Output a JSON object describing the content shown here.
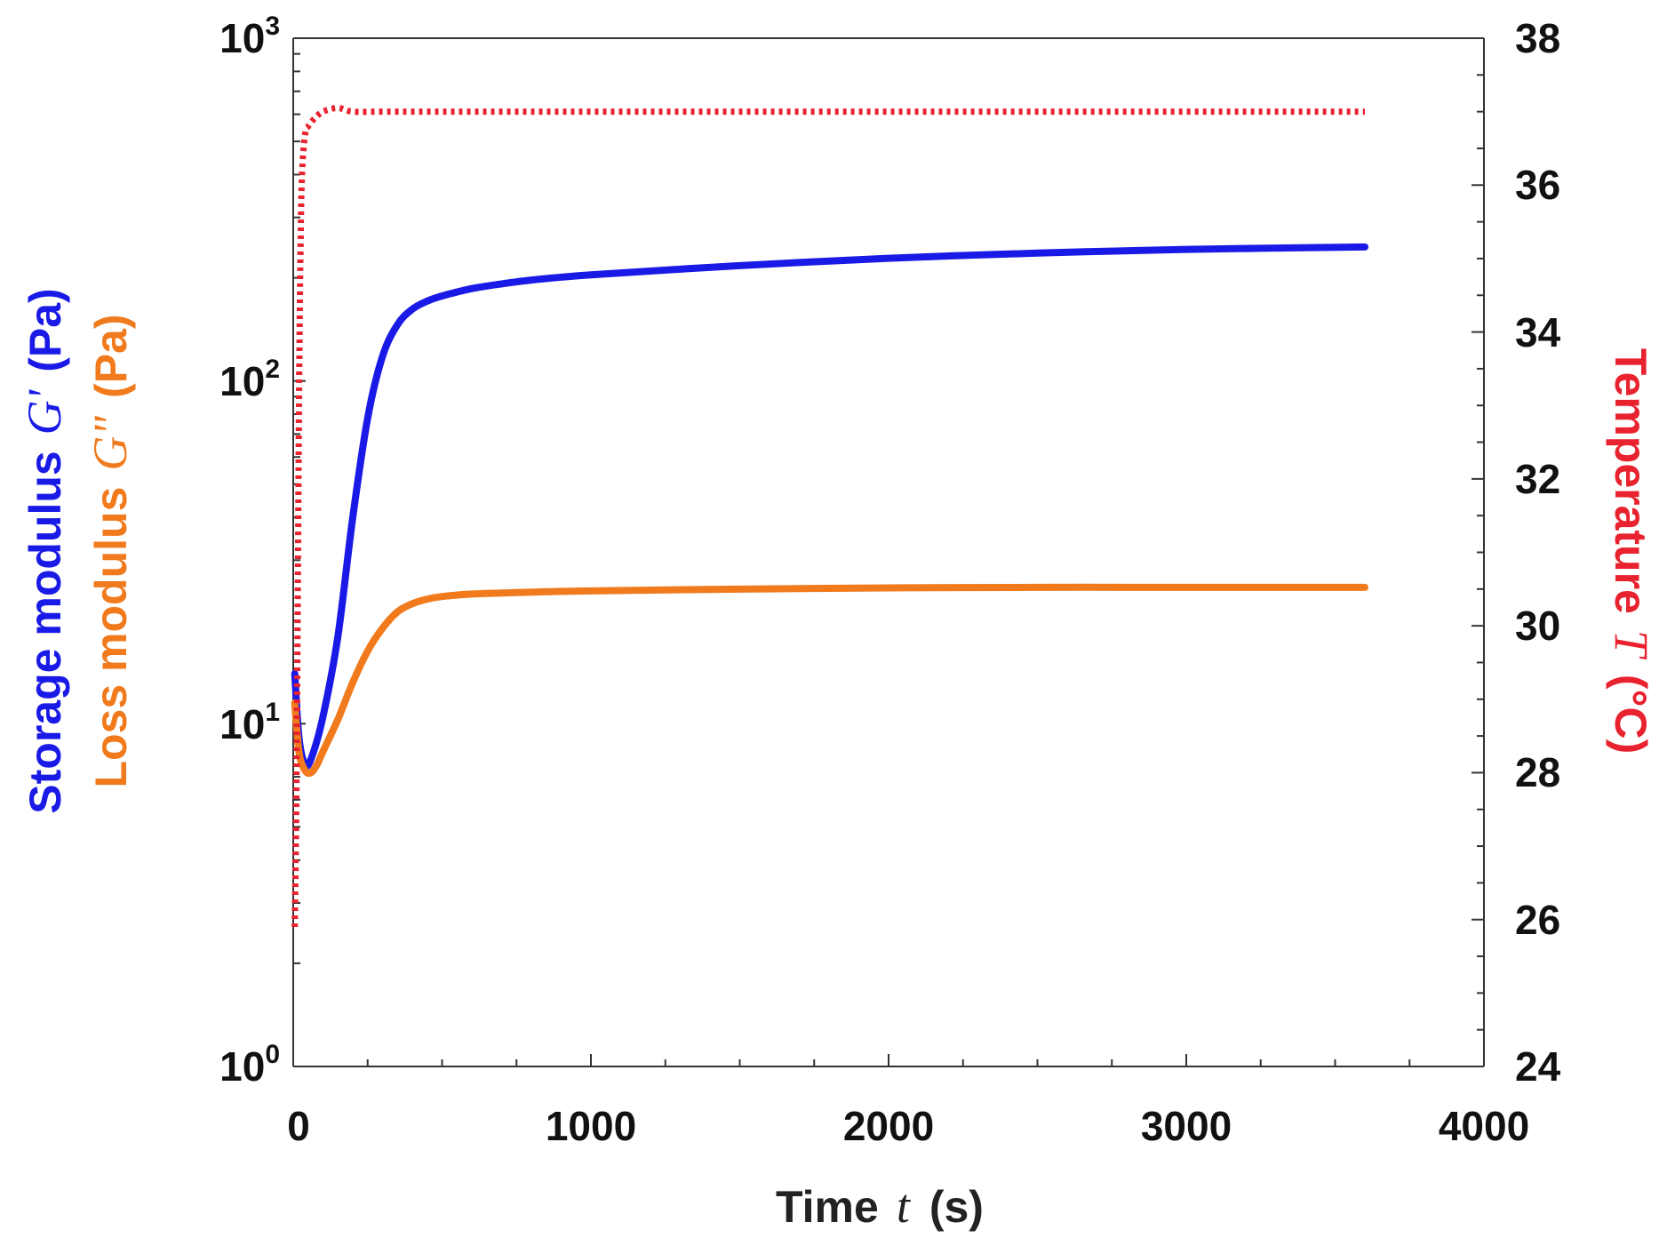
{
  "chart_data": {
    "type": "line",
    "xlabel": {
      "prefix": "Time",
      "symbol": "t",
      "unit": "(s)"
    },
    "x_ticks": [
      "0",
      "1000",
      "2000",
      "3000",
      "4000"
    ],
    "xlim": [
      0,
      4000
    ],
    "y_left": {
      "scale": "log",
      "ylim": [
        1,
        1000
      ],
      "tick_labels": [
        {
          "base": "10",
          "exp": "3"
        },
        {
          "base": "10",
          "exp": "2"
        },
        {
          "base": "10",
          "exp": "1"
        },
        {
          "base": "10",
          "exp": "0"
        }
      ],
      "title_storage": {
        "prefix": "Storage modulus",
        "symbol": "G'",
        "unit": "(Pa)"
      },
      "title_loss": {
        "prefix": "Loss modulus",
        "symbol": "G\"",
        "unit": "(Pa)"
      }
    },
    "y_right": {
      "scale": "linear",
      "ylim": [
        24,
        38
      ],
      "tick_labels": [
        "38",
        "36",
        "34",
        "32",
        "30",
        "28",
        "26",
        "24"
      ],
      "title": {
        "prefix": "Temperature",
        "symbol": "T",
        "unit": "(°C)"
      }
    },
    "series": [
      {
        "name": "Storage modulus G'",
        "axis": "left",
        "color": "#1a1ae6",
        "style": "solid",
        "x": [
          5,
          20,
          40,
          60,
          100,
          150,
          200,
          250,
          300,
          350,
          400,
          450,
          500,
          600,
          700,
          800,
          1000,
          1500,
          2000,
          2500,
          3000,
          3600
        ],
        "y": [
          14,
          9.0,
          7.6,
          7.9,
          10.5,
          18,
          40,
          78,
          118,
          146,
          162,
          171,
          177,
          186,
          192,
          197,
          204,
          217,
          228,
          236,
          242,
          246
        ]
      },
      {
        "name": "Loss modulus G\"",
        "axis": "left",
        "color": "#f07a1c",
        "style": "solid",
        "x": [
          5,
          20,
          40,
          60,
          80,
          100,
          150,
          200,
          250,
          300,
          350,
          400,
          450,
          500,
          600,
          800,
          1000,
          1500,
          2000,
          2500,
          3000,
          3600
        ],
        "y": [
          11.5,
          8.2,
          7.3,
          7.2,
          7.6,
          8.3,
          10.3,
          13.2,
          16.3,
          19.0,
          21.2,
          22.4,
          23.1,
          23.5,
          23.9,
          24.2,
          24.4,
          24.7,
          24.9,
          25.0,
          25.0,
          25.0
        ]
      },
      {
        "name": "Temperature T",
        "axis": "right",
        "color": "#e8222e",
        "style": "dotted",
        "x": [
          5,
          10,
          15,
          20,
          25,
          30,
          40,
          50,
          70,
          100,
          150,
          200,
          300,
          500,
          1000,
          2000,
          3000,
          3600
        ],
        "y": [
          25.9,
          27.5,
          30.2,
          33.4,
          35.3,
          36.2,
          36.7,
          36.8,
          36.9,
          37.0,
          37.05,
          37.0,
          37.0,
          37.0,
          37.0,
          37.0,
          37.0,
          37.0
        ]
      }
    ]
  }
}
